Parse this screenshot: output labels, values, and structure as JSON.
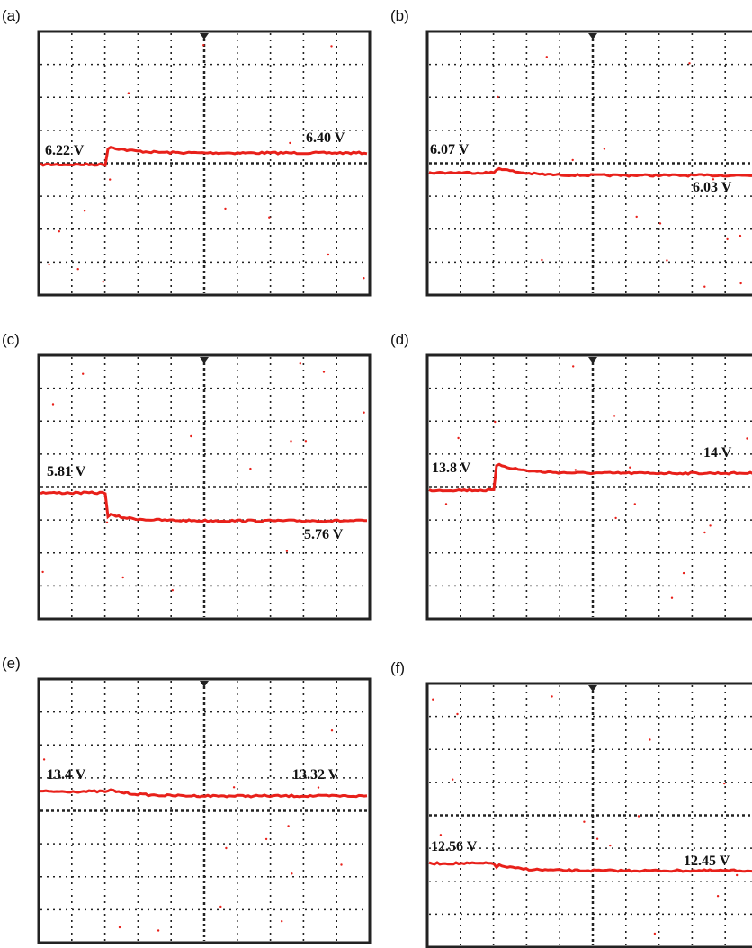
{
  "panels": [
    {
      "label": "(a)",
      "annotations": [
        "6.22 V",
        "6.40 V"
      ]
    },
    {
      "label": "(b)",
      "annotations": [
        "6.07 V",
        "6.03 V"
      ]
    },
    {
      "label": "(c)",
      "annotations": [
        "5.81 V",
        "5.76 V"
      ]
    },
    {
      "label": "(d)",
      "annotations": [
        "13.8 V",
        "14 V"
      ]
    },
    {
      "label": "(e)",
      "annotations": [
        "13.4 V",
        "13.32 V"
      ]
    },
    {
      "label": "(f)",
      "annotations": [
        "12.56 V",
        "12.45 V"
      ]
    }
  ]
}
